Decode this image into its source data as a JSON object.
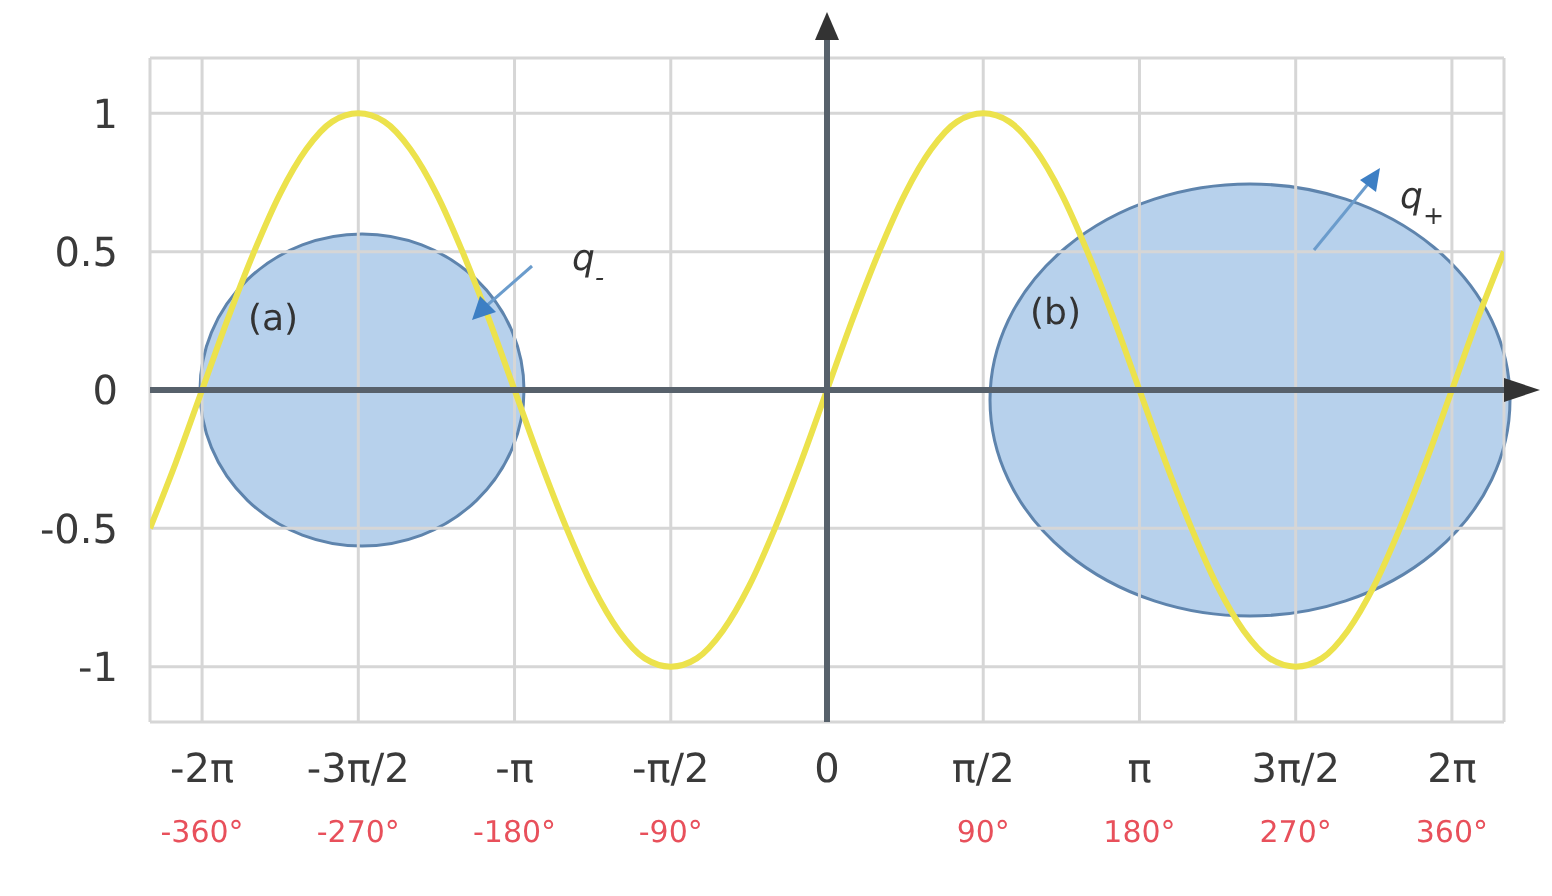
{
  "chart_data": {
    "type": "line",
    "x": [
      -390,
      -375,
      -360,
      -345,
      -330,
      -315,
      -300,
      -285,
      -270,
      -255,
      -240,
      -225,
      -210,
      -195,
      -180,
      -165,
      -150,
      -135,
      -120,
      -105,
      -90,
      -75,
      -60,
      -45,
      -30,
      -15,
      0,
      15,
      30,
      45,
      60,
      75,
      90,
      105,
      120,
      135,
      150,
      165,
      180,
      195,
      210,
      225,
      240,
      255,
      270,
      285,
      300,
      315,
      330,
      345,
      360,
      375,
      390
    ],
    "series": [
      {
        "color": "#ece24c",
        "values": [
          -0.5,
          -0.26,
          0,
          0.26,
          0.5,
          0.71,
          0.87,
          0.97,
          1,
          0.97,
          0.87,
          0.71,
          0.5,
          0.26,
          0,
          -0.26,
          -0.5,
          -0.71,
          -0.87,
          -0.97,
          -1,
          -0.97,
          -0.87,
          -0.71,
          -0.5,
          -0.26,
          0,
          0.26,
          0.5,
          0.71,
          0.87,
          0.97,
          1,
          0.97,
          0.87,
          0.71,
          0.5,
          0.26,
          0,
          -0.26,
          -0.5,
          -0.71,
          -0.87,
          -0.97,
          -1,
          -0.97,
          -0.87,
          -0.71,
          -0.5,
          -0.26,
          0,
          0.26,
          0.5
        ]
      }
    ],
    "xlim": [
      -390,
      390
    ],
    "xticks": [
      {
        "value": -360,
        "label": "-2π\n-360°"
      },
      {
        "value": -270,
        "label": "-3π/2\n-270°"
      },
      {
        "value": -180,
        "label": "-π\n-180°"
      },
      {
        "value": -90,
        "label": "-π/2\n-90°"
      },
      0,
      {
        "value": 90,
        "label": "π/2\n90°"
      },
      {
        "value": 180,
        "label": "π\n180°"
      },
      {
        "value": 270,
        "label": "3π/2\n270°"
      },
      {
        "value": 360,
        "label": "2π\n360°"
      }
    ],
    "ylim": [
      -1.2,
      1.2
    ],
    "yticks": [
      -1,
      -0.5,
      0,
      0.5,
      1
    ],
    "grid": true,
    "marker": "none",
    "line_style": "solid",
    "annotations": [
      "(a)",
      "q$_{-}$",
      "(b)",
      "q$_{+}$"
    ]
  }
}
